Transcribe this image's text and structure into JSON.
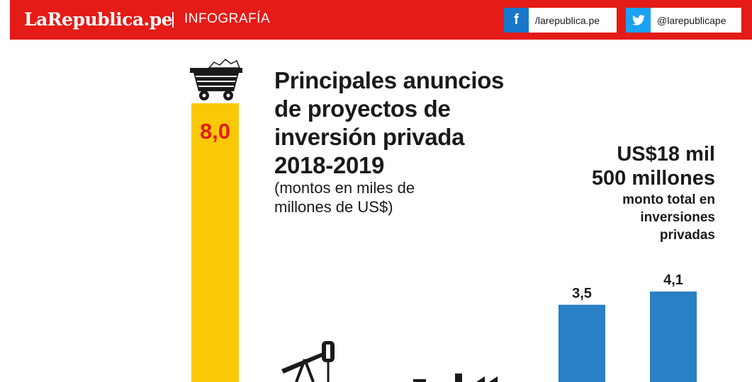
{
  "header": {
    "brand": "LaRepublica.pe",
    "section": "INFOGRAFÍA",
    "social": [
      {
        "icon": "facebook-icon",
        "glyph": "f",
        "handle": "/larepublica.pe"
      },
      {
        "icon": "twitter-icon",
        "glyph": "✦",
        "handle": "@larepublicape"
      }
    ]
  },
  "title_lines": [
    "Principales anuncios",
    "de proyectos de",
    "inversión privada",
    "2018-2019"
  ],
  "subtitle_lines": [
    "(montos en miles de",
    "millones de US$)"
  ],
  "total": {
    "amount_lines": [
      "US$18 mil",
      "500 millones"
    ],
    "caption_lines": [
      "monto total en",
      "inversiones",
      "privadas"
    ]
  },
  "colors": {
    "header_red": "#e41b17",
    "mining_bar": "#f9c806",
    "mining_label": "#e41b17",
    "blue_bar": "#2a80c4",
    "text_dark": "#1a1a1a"
  },
  "chart_data": {
    "type": "bar",
    "title": "Principales anuncios de proyectos de inversión privada 2018-2019",
    "subtitle": "(montos en miles de millones de US$)",
    "unit": "miles de millones de US$",
    "bars": [
      {
        "value": 8.0,
        "label": "8,0",
        "color": "#f9c806",
        "icon": "mine-cart-icon",
        "label_position": "inside"
      },
      {
        "value": 3.5,
        "label": "3,5",
        "color": "#2a80c4",
        "label_position": "above"
      },
      {
        "value": 4.1,
        "label": "4,1",
        "color": "#2a80c4",
        "label_position": "above"
      }
    ],
    "partial_icons": [
      "oil-pumpjack-icon",
      "industry-icon"
    ]
  }
}
